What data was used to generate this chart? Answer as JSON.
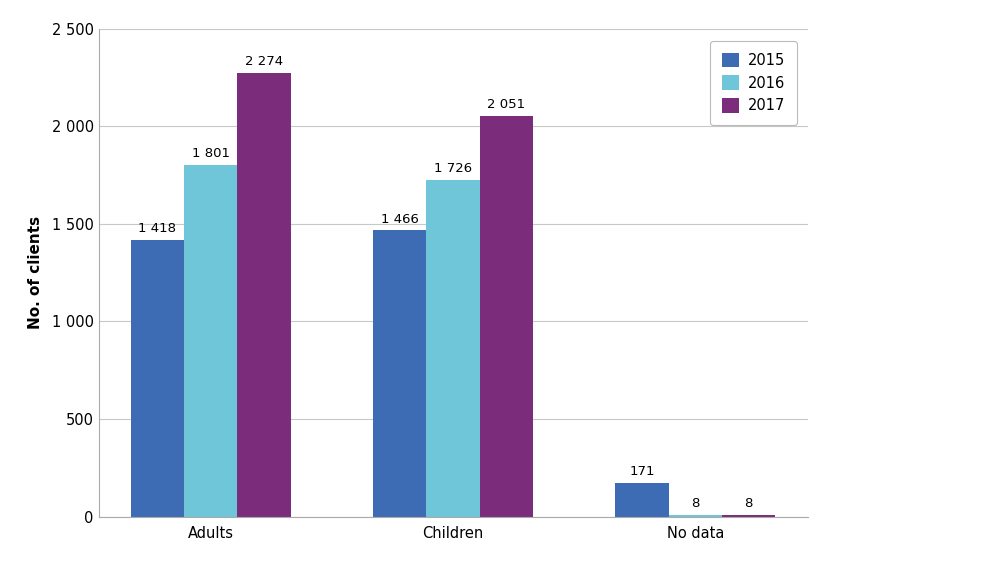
{
  "categories": [
    "Adults",
    "Children",
    "No data"
  ],
  "series": {
    "2015": [
      1418,
      1466,
      171
    ],
    "2016": [
      1801,
      1726,
      8
    ],
    "2017": [
      2274,
      2051,
      8
    ]
  },
  "colors": {
    "2015": "#3D6CB5",
    "2016": "#6EC6D8",
    "2017": "#7B2D7B"
  },
  "ylabel": "No. of clients",
  "ylim": [
    0,
    2500
  ],
  "yticks": [
    0,
    500,
    1000,
    1500,
    2000,
    2500
  ],
  "bar_width": 0.22,
  "label_fontsize": 9.5,
  "axis_fontsize": 11,
  "tick_fontsize": 10.5,
  "legend_fontsize": 10.5,
  "background_color": "#ffffff"
}
